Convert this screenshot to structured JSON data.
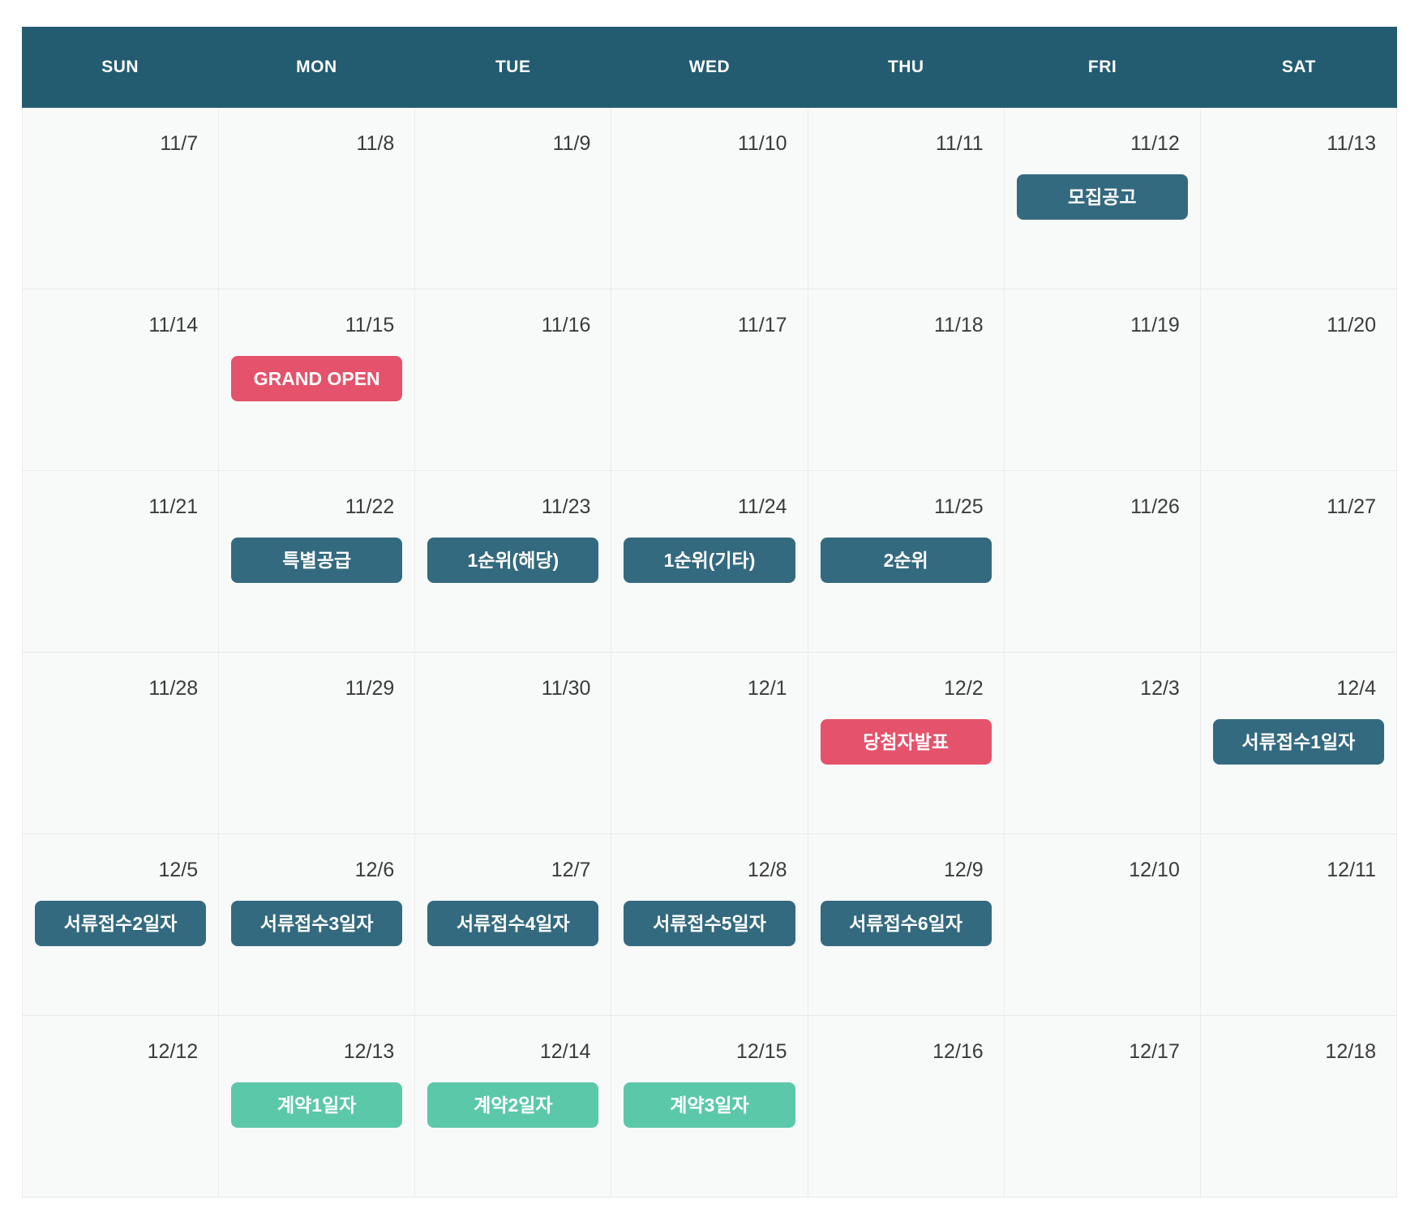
{
  "calendar": {
    "day_headers": [
      "SUN",
      "MON",
      "TUE",
      "WED",
      "THU",
      "FRI",
      "SAT"
    ],
    "colors": {
      "header_bg": "#235c71",
      "teal": "#346a7f",
      "red": "#e5526b",
      "green": "#5cc8aa",
      "cell_bg": "#f8f9f9",
      "date_text": "#3b3b3b"
    },
    "weeks": [
      [
        {
          "date": "11/7",
          "event": null
        },
        {
          "date": "11/8",
          "event": null
        },
        {
          "date": "11/9",
          "event": null
        },
        {
          "date": "11/10",
          "event": null
        },
        {
          "date": "11/11",
          "event": null
        },
        {
          "date": "11/12",
          "event": {
            "label": "모집공고",
            "color": "teal"
          }
        },
        {
          "date": "11/13",
          "event": null
        }
      ],
      [
        {
          "date": "11/14",
          "event": null
        },
        {
          "date": "11/15",
          "event": {
            "label": "GRAND OPEN",
            "color": "red"
          }
        },
        {
          "date": "11/16",
          "event": null
        },
        {
          "date": "11/17",
          "event": null
        },
        {
          "date": "11/18",
          "event": null
        },
        {
          "date": "11/19",
          "event": null
        },
        {
          "date": "11/20",
          "event": null
        }
      ],
      [
        {
          "date": "11/21",
          "event": null
        },
        {
          "date": "11/22",
          "event": {
            "label": "특별공급",
            "color": "teal"
          }
        },
        {
          "date": "11/23",
          "event": {
            "label": "1순위(해당)",
            "color": "teal"
          }
        },
        {
          "date": "11/24",
          "event": {
            "label": "1순위(기타)",
            "color": "teal"
          }
        },
        {
          "date": "11/25",
          "event": {
            "label": "2순위",
            "color": "teal"
          }
        },
        {
          "date": "11/26",
          "event": null
        },
        {
          "date": "11/27",
          "event": null
        }
      ],
      [
        {
          "date": "11/28",
          "event": null
        },
        {
          "date": "11/29",
          "event": null
        },
        {
          "date": "11/30",
          "event": null
        },
        {
          "date": "12/1",
          "event": null
        },
        {
          "date": "12/2",
          "event": {
            "label": "당첨자발표",
            "color": "red"
          }
        },
        {
          "date": "12/3",
          "event": null
        },
        {
          "date": "12/4",
          "event": {
            "label": "서류접수1일자",
            "color": "teal"
          }
        }
      ],
      [
        {
          "date": "12/5",
          "event": {
            "label": "서류접수2일자",
            "color": "teal"
          }
        },
        {
          "date": "12/6",
          "event": {
            "label": "서류접수3일자",
            "color": "teal"
          }
        },
        {
          "date": "12/7",
          "event": {
            "label": "서류접수4일자",
            "color": "teal"
          }
        },
        {
          "date": "12/8",
          "event": {
            "label": "서류접수5일자",
            "color": "teal"
          }
        },
        {
          "date": "12/9",
          "event": {
            "label": "서류접수6일자",
            "color": "teal"
          }
        },
        {
          "date": "12/10",
          "event": null
        },
        {
          "date": "12/11",
          "event": null
        }
      ],
      [
        {
          "date": "12/12",
          "event": null
        },
        {
          "date": "12/13",
          "event": {
            "label": "계약1일자",
            "color": "green"
          }
        },
        {
          "date": "12/14",
          "event": {
            "label": "계약2일자",
            "color": "green"
          }
        },
        {
          "date": "12/15",
          "event": {
            "label": "계약3일자",
            "color": "green"
          }
        },
        {
          "date": "12/16",
          "event": null
        },
        {
          "date": "12/17",
          "event": null
        },
        {
          "date": "12/18",
          "event": null
        }
      ]
    ]
  }
}
